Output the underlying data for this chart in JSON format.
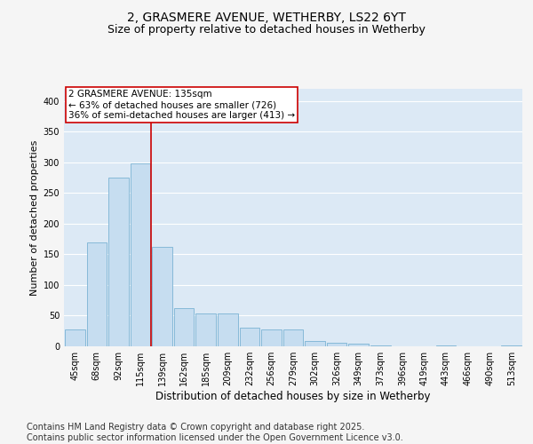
{
  "title": "2, GRASMERE AVENUE, WETHERBY, LS22 6YT",
  "subtitle": "Size of property relative to detached houses in Wetherby",
  "xlabel": "Distribution of detached houses by size in Wetherby",
  "ylabel": "Number of detached properties",
  "categories": [
    "45sqm",
    "68sqm",
    "92sqm",
    "115sqm",
    "139sqm",
    "162sqm",
    "185sqm",
    "209sqm",
    "232sqm",
    "256sqm",
    "279sqm",
    "302sqm",
    "326sqm",
    "349sqm",
    "373sqm",
    "396sqm",
    "419sqm",
    "443sqm",
    "466sqm",
    "490sqm",
    "513sqm"
  ],
  "values": [
    28,
    170,
    275,
    298,
    162,
    63,
    53,
    53,
    30,
    27,
    27,
    9,
    6,
    5,
    1,
    0,
    0,
    1,
    0,
    0,
    1
  ],
  "bar_color": "#c6ddf0",
  "bar_edge_color": "#7ab3d4",
  "vline_color": "#cc0000",
  "annotation_text": "2 GRASMERE AVENUE: 135sqm\n← 63% of detached houses are smaller (726)\n36% of semi-detached houses are larger (413) →",
  "annotation_box_color": "#ffffff",
  "annotation_box_edge": "#cc0000",
  "ylim": [
    0,
    420
  ],
  "yticks": [
    0,
    50,
    100,
    150,
    200,
    250,
    300,
    350,
    400
  ],
  "plot_bg_color": "#dce9f5",
  "grid_color": "#ffffff",
  "fig_bg_color": "#f5f5f5",
  "footer_text": "Contains HM Land Registry data © Crown copyright and database right 2025.\nContains public sector information licensed under the Open Government Licence v3.0.",
  "title_fontsize": 10,
  "subtitle_fontsize": 9,
  "footer_fontsize": 7,
  "tick_fontsize": 7,
  "ylabel_fontsize": 8,
  "xlabel_fontsize": 8.5,
  "annotation_fontsize": 7.5
}
